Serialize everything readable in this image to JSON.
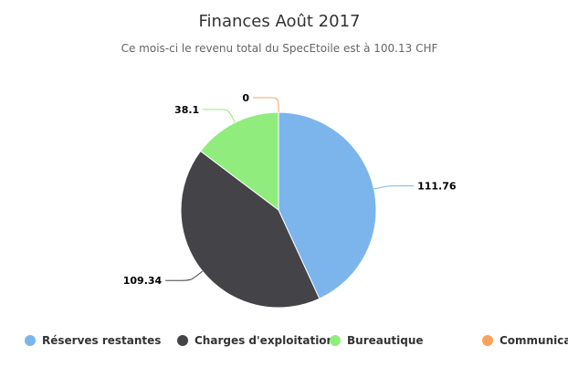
{
  "chart_data": {
    "type": "pie",
    "title": "Finances Août 2017",
    "subtitle": "Ce mois-ci le revenu total du SpecEtoile est à 100.13 CHF",
    "slices": [
      {
        "name": "Réserves restantes",
        "value": 111.76,
        "label": "111.76",
        "color": "#7cb5ec"
      },
      {
        "name": "Charges d'exploitation",
        "value": 109.34,
        "label": "109.34",
        "color": "#434348"
      },
      {
        "name": "Bureautique",
        "value": 38.1,
        "label": "38.1",
        "color": "#90ed7d"
      },
      {
        "name": "Communication",
        "value": 0,
        "label": "0",
        "color": "#f7a35c"
      }
    ],
    "legend_position": "bottom"
  }
}
